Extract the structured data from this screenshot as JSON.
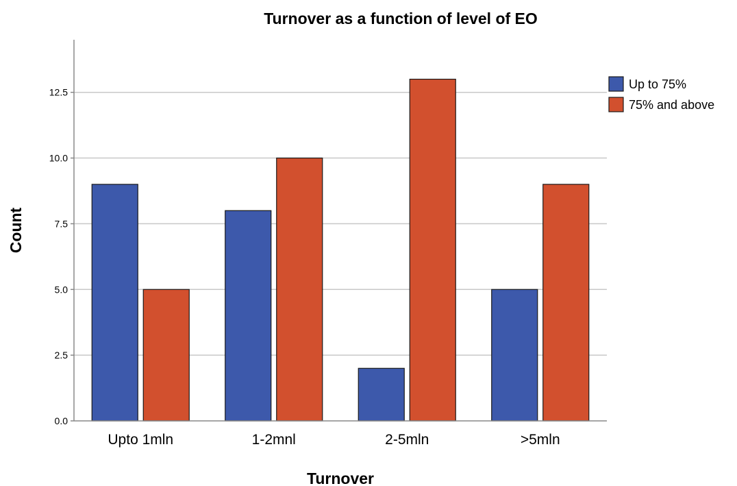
{
  "chart_data": {
    "type": "bar",
    "title": "Turnover as a function of level of EO",
    "xlabel": "Turnover",
    "ylabel": "Count",
    "categories": [
      "Upto 1mln",
      "1-2mnl",
      "2-5mln",
      ">5mln"
    ],
    "series": [
      {
        "name": "Up to 75%",
        "color": "#3D59AB",
        "values": [
          9,
          8,
          2,
          5
        ]
      },
      {
        "name": "75% and above",
        "color": "#D2502E",
        "values": [
          5,
          10,
          13,
          9
        ]
      }
    ],
    "ylim": [
      0,
      14.5
    ],
    "yticks": [
      "0.0",
      "2.5",
      "5.0",
      "7.5",
      "10.0",
      "12.5"
    ],
    "ytick_values": [
      0,
      2.5,
      5,
      7.5,
      10,
      12.5
    ],
    "grid": true,
    "legend_position": "top-right"
  }
}
